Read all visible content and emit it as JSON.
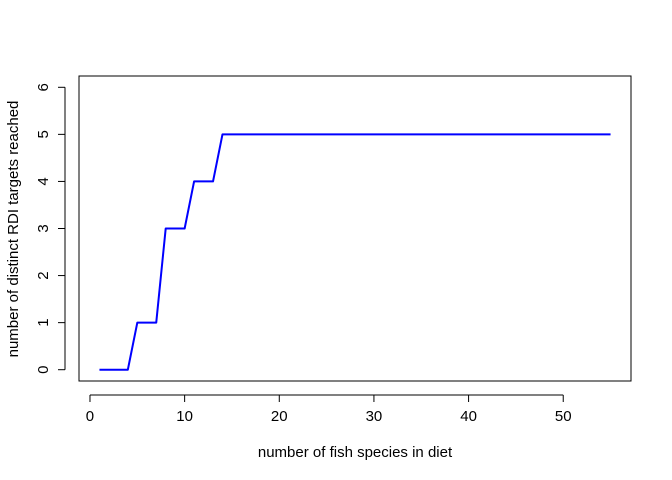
{
  "chart_data": {
    "type": "line",
    "title": "",
    "xlabel": "number of fish species in diet",
    "ylabel": "number of distinct RDI targets reached",
    "xlim": [
      -1.16,
      57.16
    ],
    "ylim": [
      -0.24,
      6.24
    ],
    "xticks": [
      0,
      10,
      20,
      30,
      40,
      50
    ],
    "yticks": [
      0,
      1,
      2,
      3,
      4,
      5,
      6
    ],
    "grid": false,
    "line_color": "#0000ff",
    "series": [
      {
        "x": [
          1,
          2,
          3,
          4,
          5,
          6,
          7,
          8,
          9,
          10,
          11,
          12,
          13,
          14,
          15,
          16,
          17,
          18,
          19,
          20,
          21,
          22,
          23,
          24,
          25,
          26,
          27,
          28,
          29,
          30,
          31,
          32,
          33,
          34,
          35,
          36,
          37,
          38,
          39,
          40,
          41,
          42,
          43,
          44,
          45,
          46,
          47,
          48,
          49,
          50,
          51,
          52,
          53,
          54,
          55
        ],
        "y": [
          0,
          0,
          0,
          0,
          1,
          1,
          1,
          3,
          3,
          3,
          4,
          4,
          4,
          5,
          5,
          5,
          5,
          5,
          5,
          5,
          5,
          5,
          5,
          5,
          5,
          5,
          5,
          5,
          5,
          5,
          5,
          5,
          5,
          5,
          5,
          5,
          5,
          5,
          5,
          5,
          5,
          5,
          5,
          5,
          5,
          5,
          5,
          5,
          5,
          5,
          5,
          5,
          5,
          5,
          5
        ]
      }
    ]
  }
}
